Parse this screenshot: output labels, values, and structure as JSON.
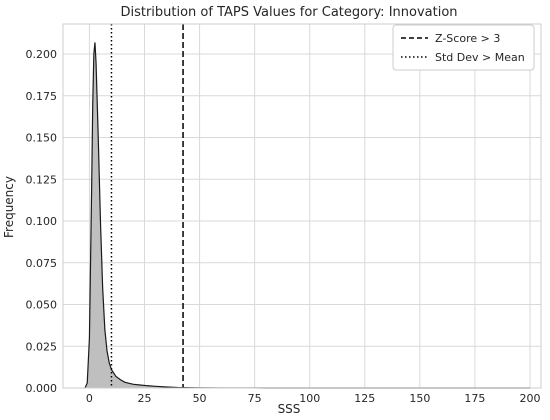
{
  "chart_data": {
    "type": "area",
    "title": "Distribution of TAPS Values for Category: Innovation",
    "xlabel": "SSS",
    "ylabel": "Frequency",
    "xlim": [
      -12,
      205
    ],
    "ylim": [
      0,
      0.218
    ],
    "xticks": [
      0,
      25,
      50,
      75,
      100,
      125,
      150,
      175,
      200
    ],
    "yticks": [
      0.0,
      0.025,
      0.05,
      0.075,
      0.1,
      0.125,
      0.15,
      0.175,
      0.2
    ],
    "ytick_labels": [
      "0.000",
      "0.025",
      "0.050",
      "0.075",
      "0.100",
      "0.125",
      "0.150",
      "0.175",
      "0.200"
    ],
    "xtick_labels": [
      "0",
      "25",
      "50",
      "75",
      "100",
      "125",
      "150",
      "175",
      "200"
    ],
    "grid": true,
    "legend_position": "top-right",
    "density": {
      "x": [
        -2,
        -1,
        0,
        1,
        1.5,
        2,
        2.5,
        3,
        4,
        5,
        6,
        7,
        8,
        9,
        10,
        11,
        12,
        14,
        16,
        18,
        20,
        23,
        26,
        30,
        35,
        40,
        50,
        60,
        80,
        100,
        120,
        140,
        160,
        180,
        200
      ],
      "y": [
        0.0,
        0.003,
        0.03,
        0.12,
        0.17,
        0.2,
        0.207,
        0.195,
        0.15,
        0.1,
        0.06,
        0.035,
        0.022,
        0.015,
        0.011,
        0.009,
        0.007,
        0.005,
        0.0035,
        0.0028,
        0.0022,
        0.0018,
        0.0014,
        0.001,
        0.0006,
        0.0003,
        0.0001,
        5e-05,
        2e-05,
        1e-05,
        0.0,
        0.0,
        0.0,
        0.0,
        0.0
      ],
      "fill_color": "#bfbfbf",
      "line_color": "#1a1a1a"
    },
    "reference_lines": [
      {
        "name": "Z-Score > 3",
        "x": 42.5,
        "style": "dashed",
        "color": "#000000"
      },
      {
        "name": "Std Dev > Mean",
        "x": 10.0,
        "style": "dotted",
        "color": "#000000"
      }
    ],
    "grid_color": "#d9d9d9",
    "axis_color": "#cccccc"
  }
}
